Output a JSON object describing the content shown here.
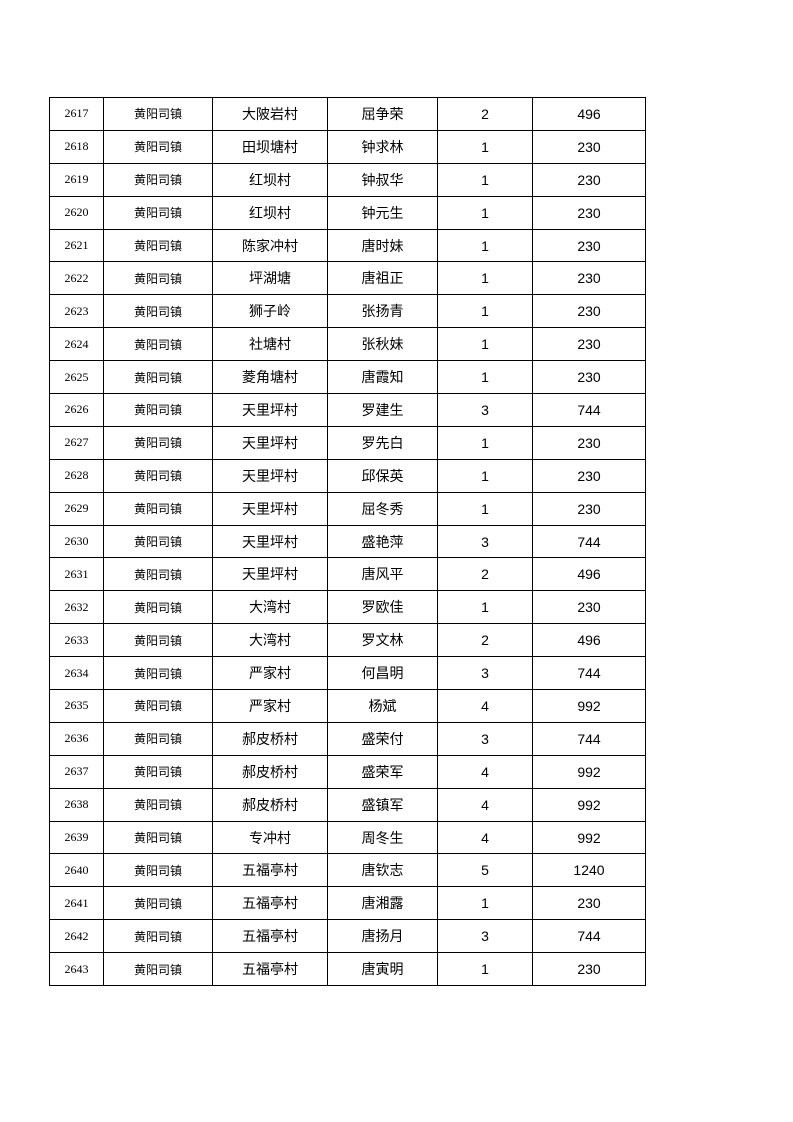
{
  "table": {
    "rows": [
      [
        "2617",
        "黄阳司镇",
        "大陂岩村",
        "屈争荣",
        "2",
        "496"
      ],
      [
        "2618",
        "黄阳司镇",
        "田坝塘村",
        "钟求林",
        "1",
        "230"
      ],
      [
        "2619",
        "黄阳司镇",
        "红坝村",
        "钟叔华",
        "1",
        "230"
      ],
      [
        "2620",
        "黄阳司镇",
        "红坝村",
        "钟元生",
        "1",
        "230"
      ],
      [
        "2621",
        "黄阳司镇",
        "陈家冲村",
        "唐时妹",
        "1",
        "230"
      ],
      [
        "2622",
        "黄阳司镇",
        "坪湖塘",
        "唐祖正",
        "1",
        "230"
      ],
      [
        "2623",
        "黄阳司镇",
        "狮子岭",
        "张扬青",
        "1",
        "230"
      ],
      [
        "2624",
        "黄阳司镇",
        "社塘村",
        "张秋妹",
        "1",
        "230"
      ],
      [
        "2625",
        "黄阳司镇",
        "菱角塘村",
        "唐霞知",
        "1",
        "230"
      ],
      [
        "2626",
        "黄阳司镇",
        "天里坪村",
        "罗建生",
        "3",
        "744"
      ],
      [
        "2627",
        "黄阳司镇",
        "天里坪村",
        "罗先白",
        "1",
        "230"
      ],
      [
        "2628",
        "黄阳司镇",
        "天里坪村",
        "邱保英",
        "1",
        "230"
      ],
      [
        "2629",
        "黄阳司镇",
        "天里坪村",
        "屈冬秀",
        "1",
        "230"
      ],
      [
        "2630",
        "黄阳司镇",
        "天里坪村",
        "盛艳萍",
        "3",
        "744"
      ],
      [
        "2631",
        "黄阳司镇",
        "天里坪村",
        "唐风平",
        "2",
        "496"
      ],
      [
        "2632",
        "黄阳司镇",
        "大湾村",
        "罗欧佳",
        "1",
        "230"
      ],
      [
        "2633",
        "黄阳司镇",
        "大湾村",
        "罗文林",
        "2",
        "496"
      ],
      [
        "2634",
        "黄阳司镇",
        "严家村",
        "何昌明",
        "3",
        "744"
      ],
      [
        "2635",
        "黄阳司镇",
        "严家村",
        "杨斌",
        "4",
        "992"
      ],
      [
        "2636",
        "黄阳司镇",
        "郝皮桥村",
        "盛荣付",
        "3",
        "744"
      ],
      [
        "2637",
        "黄阳司镇",
        "郝皮桥村",
        "盛荣军",
        "4",
        "992"
      ],
      [
        "2638",
        "黄阳司镇",
        "郝皮桥村",
        "盛镇军",
        "4",
        "992"
      ],
      [
        "2639",
        "黄阳司镇",
        "专冲村",
        "周冬生",
        "4",
        "992"
      ],
      [
        "2640",
        "黄阳司镇",
        "五福亭村",
        "唐钦志",
        "5",
        "1240"
      ],
      [
        "2641",
        "黄阳司镇",
        "五福亭村",
        "唐湘露",
        "1",
        "230"
      ],
      [
        "2642",
        "黄阳司镇",
        "五福亭村",
        "唐扬月",
        "3",
        "744"
      ],
      [
        "2643",
        "黄阳司镇",
        "五福亭村",
        "唐寅明",
        "1",
        "230"
      ]
    ]
  }
}
